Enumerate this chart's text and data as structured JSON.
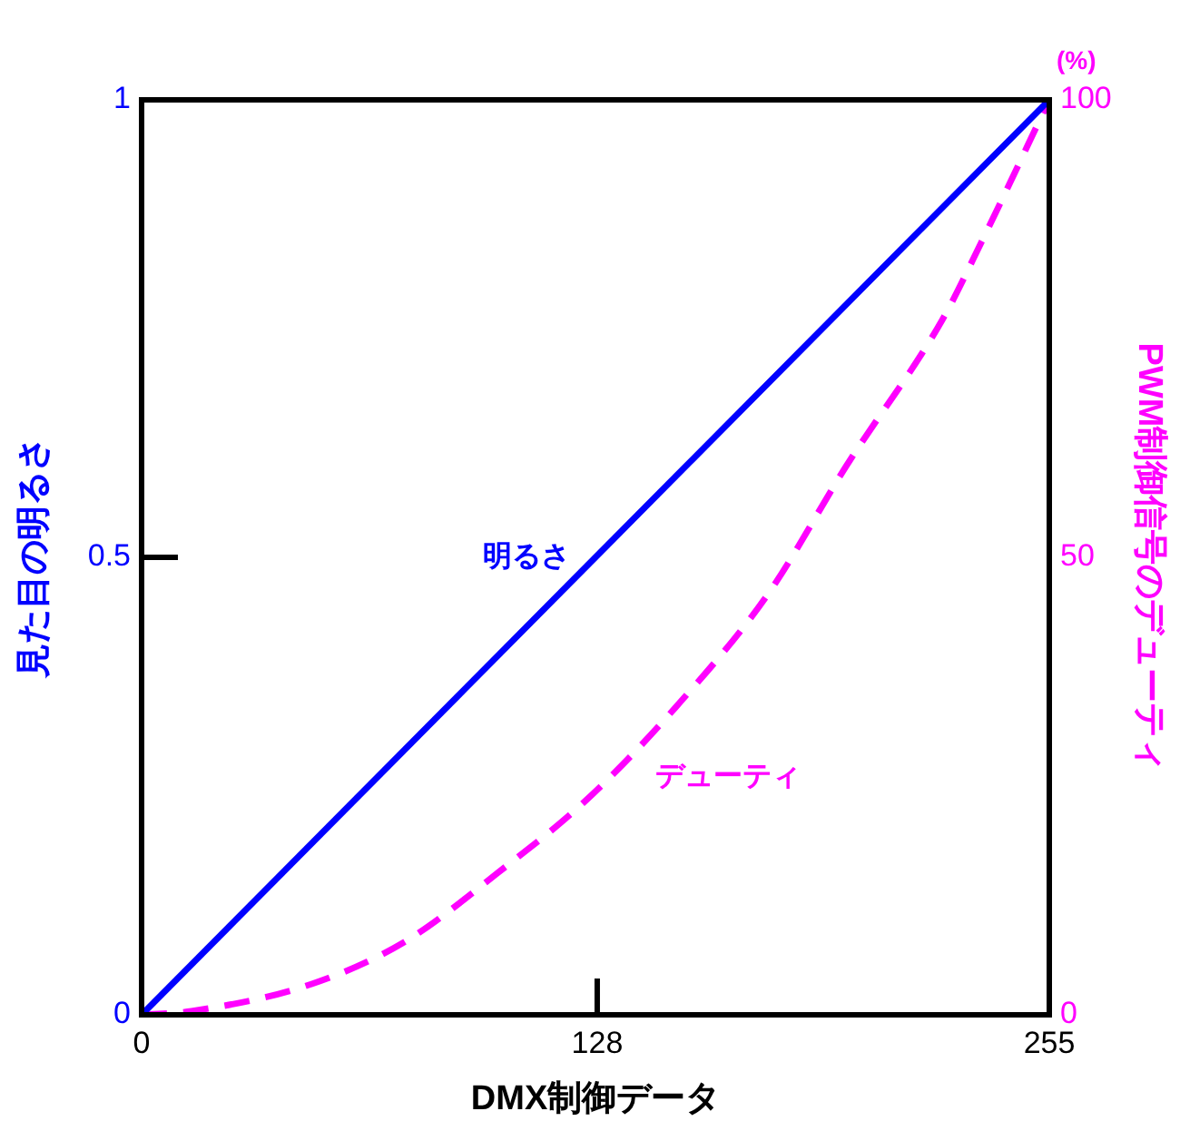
{
  "chart_data": {
    "type": "line",
    "xlabel": "DMX制御データ",
    "ylabel": "見た目の明るさ",
    "y2label": "PWM制御信号のデューティ",
    "annotations": [
      "(%)"
    ],
    "xlim": [
      0,
      255
    ],
    "xticks": [
      0,
      128,
      255
    ],
    "ylim": [
      0,
      1
    ],
    "yticks": [
      0,
      0.5,
      1
    ],
    "y2lim": [
      0,
      100
    ],
    "y2ticks": [
      0,
      50,
      100
    ],
    "grid": false,
    "legend": false,
    "marker": "none",
    "series": [
      {
        "name": "明るさ",
        "color": "#0000ff",
        "line_style": "solid",
        "x": [
          0,
          255
        ],
        "values": [
          0,
          1
        ]
      },
      {
        "name": "デューティ",
        "color": "#ff00ff",
        "line_style": "dashed",
        "axis": "y2",
        "x": [
          0,
          14,
          48,
          74,
          100,
          125,
          150,
          176,
          198,
          225,
          236,
          255
        ],
        "values": [
          0,
          0.4,
          3.4,
          8,
          15.5,
          23.5,
          33.6,
          46,
          60,
          76,
          84.5,
          100
        ]
      }
    ]
  }
}
